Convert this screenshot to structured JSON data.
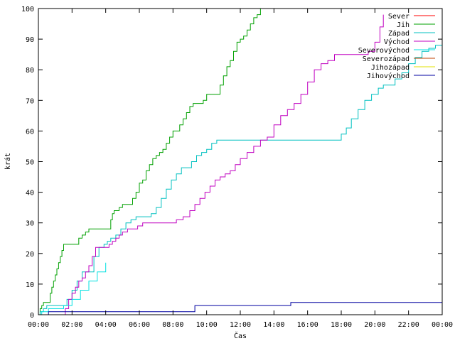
{
  "chart_data": {
    "type": "line",
    "title": "",
    "xlabel": "Čas",
    "ylabel": "krát",
    "xlim": [
      0,
      24
    ],
    "ylim": [
      0,
      100
    ],
    "grid": false,
    "legend_position": "top-right",
    "y_ticks": [
      "0",
      "10",
      "20",
      "30",
      "40",
      "50",
      "60",
      "70",
      "80",
      "90",
      "100"
    ],
    "x_ticks": [
      "00:00",
      "02:00",
      "04:00",
      "06:00",
      "08:00",
      "10:00",
      "12:00",
      "14:00",
      "16:00",
      "18:00",
      "20:00",
      "22:00",
      "00:00"
    ],
    "series": [
      {
        "name": "Sever",
        "color": "#ff0000",
        "x": [],
        "y": []
      },
      {
        "name": "Jih",
        "color": "#00a000",
        "x": [
          0,
          0.1,
          0.2,
          0.3,
          0.5,
          0.7,
          0.8,
          0.9,
          1.0,
          1.1,
          1.2,
          1.3,
          1.4,
          1.5,
          1.6,
          2.3,
          2.4,
          2.6,
          2.8,
          3.0,
          3.1,
          3.2,
          4.2,
          4.3,
          4.4,
          4.5,
          4.6,
          4.8,
          5.0,
          5.1,
          5.3,
          5.6,
          5.8,
          6.0,
          6.2,
          6.4,
          6.6,
          6.8,
          7.0,
          7.2,
          7.4,
          7.6,
          7.8,
          8.0,
          8.2,
          8.4,
          8.6,
          8.8,
          9.0,
          9.2,
          9.4,
          9.6,
          9.8,
          10.0,
          10.6,
          10.8,
          11.0,
          11.2,
          11.4,
          11.6,
          11.8,
          12.0,
          12.2,
          12.4,
          12.6,
          12.8,
          13.0,
          13.2
        ],
        "y": [
          0,
          2,
          3,
          4,
          4,
          7,
          9,
          11,
          13,
          15,
          17,
          19,
          21,
          23,
          23,
          23,
          25,
          26,
          27,
          28,
          28,
          28,
          28,
          31,
          33,
          34,
          34,
          35,
          36,
          36,
          36,
          38,
          40,
          43,
          44,
          47,
          49,
          51,
          52,
          53,
          54,
          56,
          58,
          60,
          60,
          62,
          64,
          66,
          68,
          69,
          69,
          69,
          70,
          72,
          72,
          75,
          78,
          81,
          83,
          86,
          89,
          90,
          91,
          93,
          95,
          97,
          98,
          100
        ]
      },
      {
        "name": "Západ",
        "color": "#00c0c0",
        "x": [
          0,
          0.1,
          0.3,
          0.5,
          1.5,
          1.7,
          2.0,
          2.3,
          2.6,
          3.0,
          3.3,
          3.6,
          3.9,
          4.1,
          4.3,
          4.6,
          4.9,
          5.2,
          5.5,
          5.8,
          6.1,
          6.4,
          6.7,
          7.0,
          7.3,
          7.6,
          7.9,
          8.2,
          8.5,
          8.8,
          9.1,
          9.4,
          9.7,
          10.0,
          10.3,
          10.6,
          11.0,
          12.0,
          14.0,
          16.0,
          17.8,
          18.0,
          18.3,
          18.6,
          19.0,
          19.4,
          19.8,
          20.2,
          20.5,
          20.8,
          21.2,
          21.6,
          22.0,
          22.4,
          22.8,
          23.2,
          23.6,
          24.0
        ],
        "y": [
          0,
          1,
          2,
          3,
          3,
          5,
          8,
          11,
          14,
          14,
          19,
          22,
          23,
          24,
          25,
          26,
          28,
          30,
          31,
          32,
          32,
          32,
          33,
          35,
          38,
          41,
          44,
          46,
          48,
          48,
          50,
          52,
          53,
          54,
          56,
          57,
          57,
          57,
          57,
          57,
          57,
          59,
          61,
          64,
          67,
          70,
          72,
          74,
          75,
          75,
          77,
          79,
          82,
          84,
          86,
          87,
          88,
          89
        ]
      },
      {
        "name": "Východ",
        "color": "#c000c0",
        "x": [
          0,
          0.5,
          1.0,
          1.6,
          1.8,
          2.0,
          2.2,
          2.4,
          2.6,
          2.8,
          3.0,
          3.2,
          3.4,
          3.6,
          3.8,
          4.0,
          4.2,
          4.4,
          4.6,
          4.8,
          5.0,
          5.3,
          5.6,
          5.9,
          6.2,
          6.5,
          6.8,
          7.1,
          7.4,
          7.8,
          8.2,
          8.6,
          9.0,
          9.3,
          9.6,
          9.9,
          10.2,
          10.5,
          10.8,
          11.1,
          11.4,
          11.7,
          12.0,
          12.4,
          12.8,
          13.2,
          13.6,
          14.0,
          14.4,
          14.8,
          15.2,
          15.6,
          16.0,
          16.4,
          16.8,
          17.2,
          17.6,
          18.0,
          18.4,
          18.8,
          19.2,
          19.6,
          20.0,
          20.3,
          20.5
        ],
        "y": [
          0,
          0,
          0,
          2,
          5,
          7,
          9,
          11,
          12,
          14,
          16,
          19,
          22,
          22,
          22,
          22,
          23,
          24,
          25,
          26,
          27,
          28,
          28,
          29,
          30,
          30,
          30,
          30,
          30,
          30,
          31,
          32,
          34,
          36,
          38,
          40,
          42,
          44,
          45,
          46,
          47,
          49,
          51,
          53,
          55,
          57,
          58,
          62,
          65,
          67,
          69,
          72,
          76,
          80,
          82,
          83,
          85,
          85,
          85,
          85,
          85,
          86,
          89,
          94,
          98
        ]
      },
      {
        "name": "Severovýchod",
        "color": "#00e0e0",
        "x": [
          0,
          0.2,
          0.4,
          0.6,
          1.0,
          1.5,
          2.0,
          2.5,
          3.0,
          3.5,
          4.0
        ],
        "y": [
          0,
          1,
          1,
          2,
          2,
          3,
          5,
          8,
          11,
          14,
          17
        ]
      },
      {
        "name": "Severozápad",
        "color": "#c04000",
        "x": [],
        "y": []
      },
      {
        "name": "Jihozápad",
        "color": "#e0e000",
        "x": [],
        "y": []
      },
      {
        "name": "Jihovýchod",
        "color": "#0000a0",
        "x": [
          0,
          0.3,
          0.6,
          0.9,
          9.2,
          9.3,
          14.9,
          15.0,
          24.0
        ],
        "y": [
          0,
          0,
          1,
          1,
          1,
          3,
          3,
          4,
          4
        ]
      }
    ]
  }
}
